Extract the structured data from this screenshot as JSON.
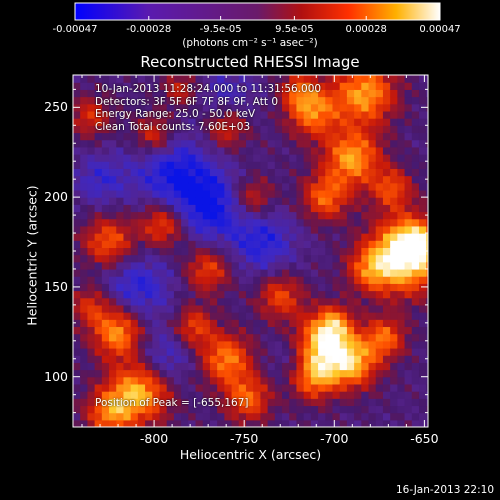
{
  "chart_data": {
    "type": "heatmap",
    "title": "Reconstructed RHESSI Image",
    "xlabel": "Heliocentric X (arcsec)",
    "ylabel": "Heliocentric Y (arcsec)",
    "xlim": [
      -845,
      -648
    ],
    "ylim": [
      72,
      268
    ],
    "xticks": [
      -800,
      -750,
      -700,
      -650
    ],
    "yticks": [
      100,
      150,
      200,
      250
    ],
    "xtick_labels": [
      "-800",
      "-750",
      "-700",
      "-650"
    ],
    "ytick_labels": [
      "100",
      "150",
      "200",
      "250"
    ],
    "colorbar": {
      "range": [
        -0.00047,
        0.00047
      ],
      "ticks": [
        -0.00047,
        -0.00028,
        -9.5e-05,
        9.5e-05,
        0.00028,
        0.00047
      ],
      "tick_labels": [
        "-0.00047",
        "-0.00028",
        "-9.5e-05",
        "9.5e-05",
        "0.00028",
        "0.00047"
      ],
      "unit_label": "(photons cm⁻² s⁻¹ asec⁻²)",
      "colormap": "blue-purple-red-yellow-white"
    },
    "annotations": {
      "time_range": "10-Jan-2013 11:28:24.000 to 11:31:56.000",
      "detectors": "Detectors: 3F 5F 6F 7F 8F 9F, Att 0",
      "energy_range": "Energy Range: 25.0 - 50.0 keV",
      "clean": "Clean    Total counts: 7.60E+03",
      "peak": "Position of Peak = [-655,167]"
    },
    "peak_position": [
      -655,
      167
    ],
    "footer_timestamp": "16-Jan-2013 22:10"
  }
}
